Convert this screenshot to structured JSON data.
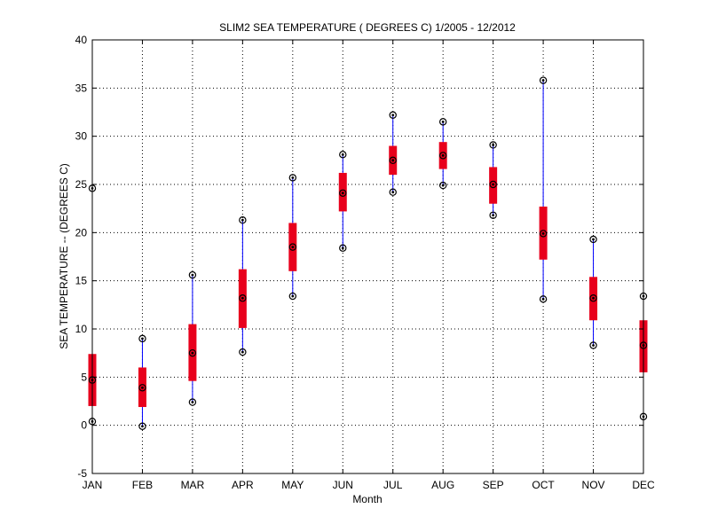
{
  "chart_data": {
    "type": "boxplot",
    "title": "SLIM2  SEA TEMPERATURE ( DEGREES C) 1/2005 - 12/2012",
    "xlabel": "Month",
    "ylabel": "SEA TEMPERATURE -- (DEGREES C)",
    "ylim": [
      -5,
      40
    ],
    "yticks": [
      -5,
      0,
      5,
      10,
      15,
      20,
      25,
      30,
      35,
      40
    ],
    "grid": true,
    "categories": [
      "JAN",
      "FEB",
      "MAR",
      "APR",
      "MAY",
      "JUN",
      "JUL",
      "AUG",
      "SEP",
      "OCT",
      "NOV",
      "DEC"
    ],
    "min": [
      0.4,
      -0.1,
      2.4,
      7.6,
      13.4,
      18.4,
      24.2,
      24.9,
      21.8,
      13.1,
      8.3,
      0.9
    ],
    "q1": [
      2.0,
      1.9,
      4.6,
      10.1,
      16.0,
      22.2,
      26.0,
      26.6,
      23.0,
      17.2,
      10.9,
      5.5
    ],
    "median": [
      4.7,
      3.9,
      7.5,
      13.2,
      18.5,
      24.1,
      27.5,
      28.0,
      25.0,
      19.9,
      13.2,
      8.3
    ],
    "q3": [
      7.4,
      6.0,
      10.5,
      16.2,
      21.0,
      26.2,
      29.0,
      29.4,
      26.8,
      22.7,
      15.4,
      10.9
    ],
    "max": [
      24.6,
      9.0,
      15.6,
      21.3,
      25.7,
      28.1,
      32.2,
      31.5,
      29.1,
      35.8,
      19.3,
      13.4
    ],
    "colors": {
      "box": "#e8001c",
      "whisker": "#0000ff",
      "marker": "#000000",
      "grid": "#000000"
    }
  }
}
